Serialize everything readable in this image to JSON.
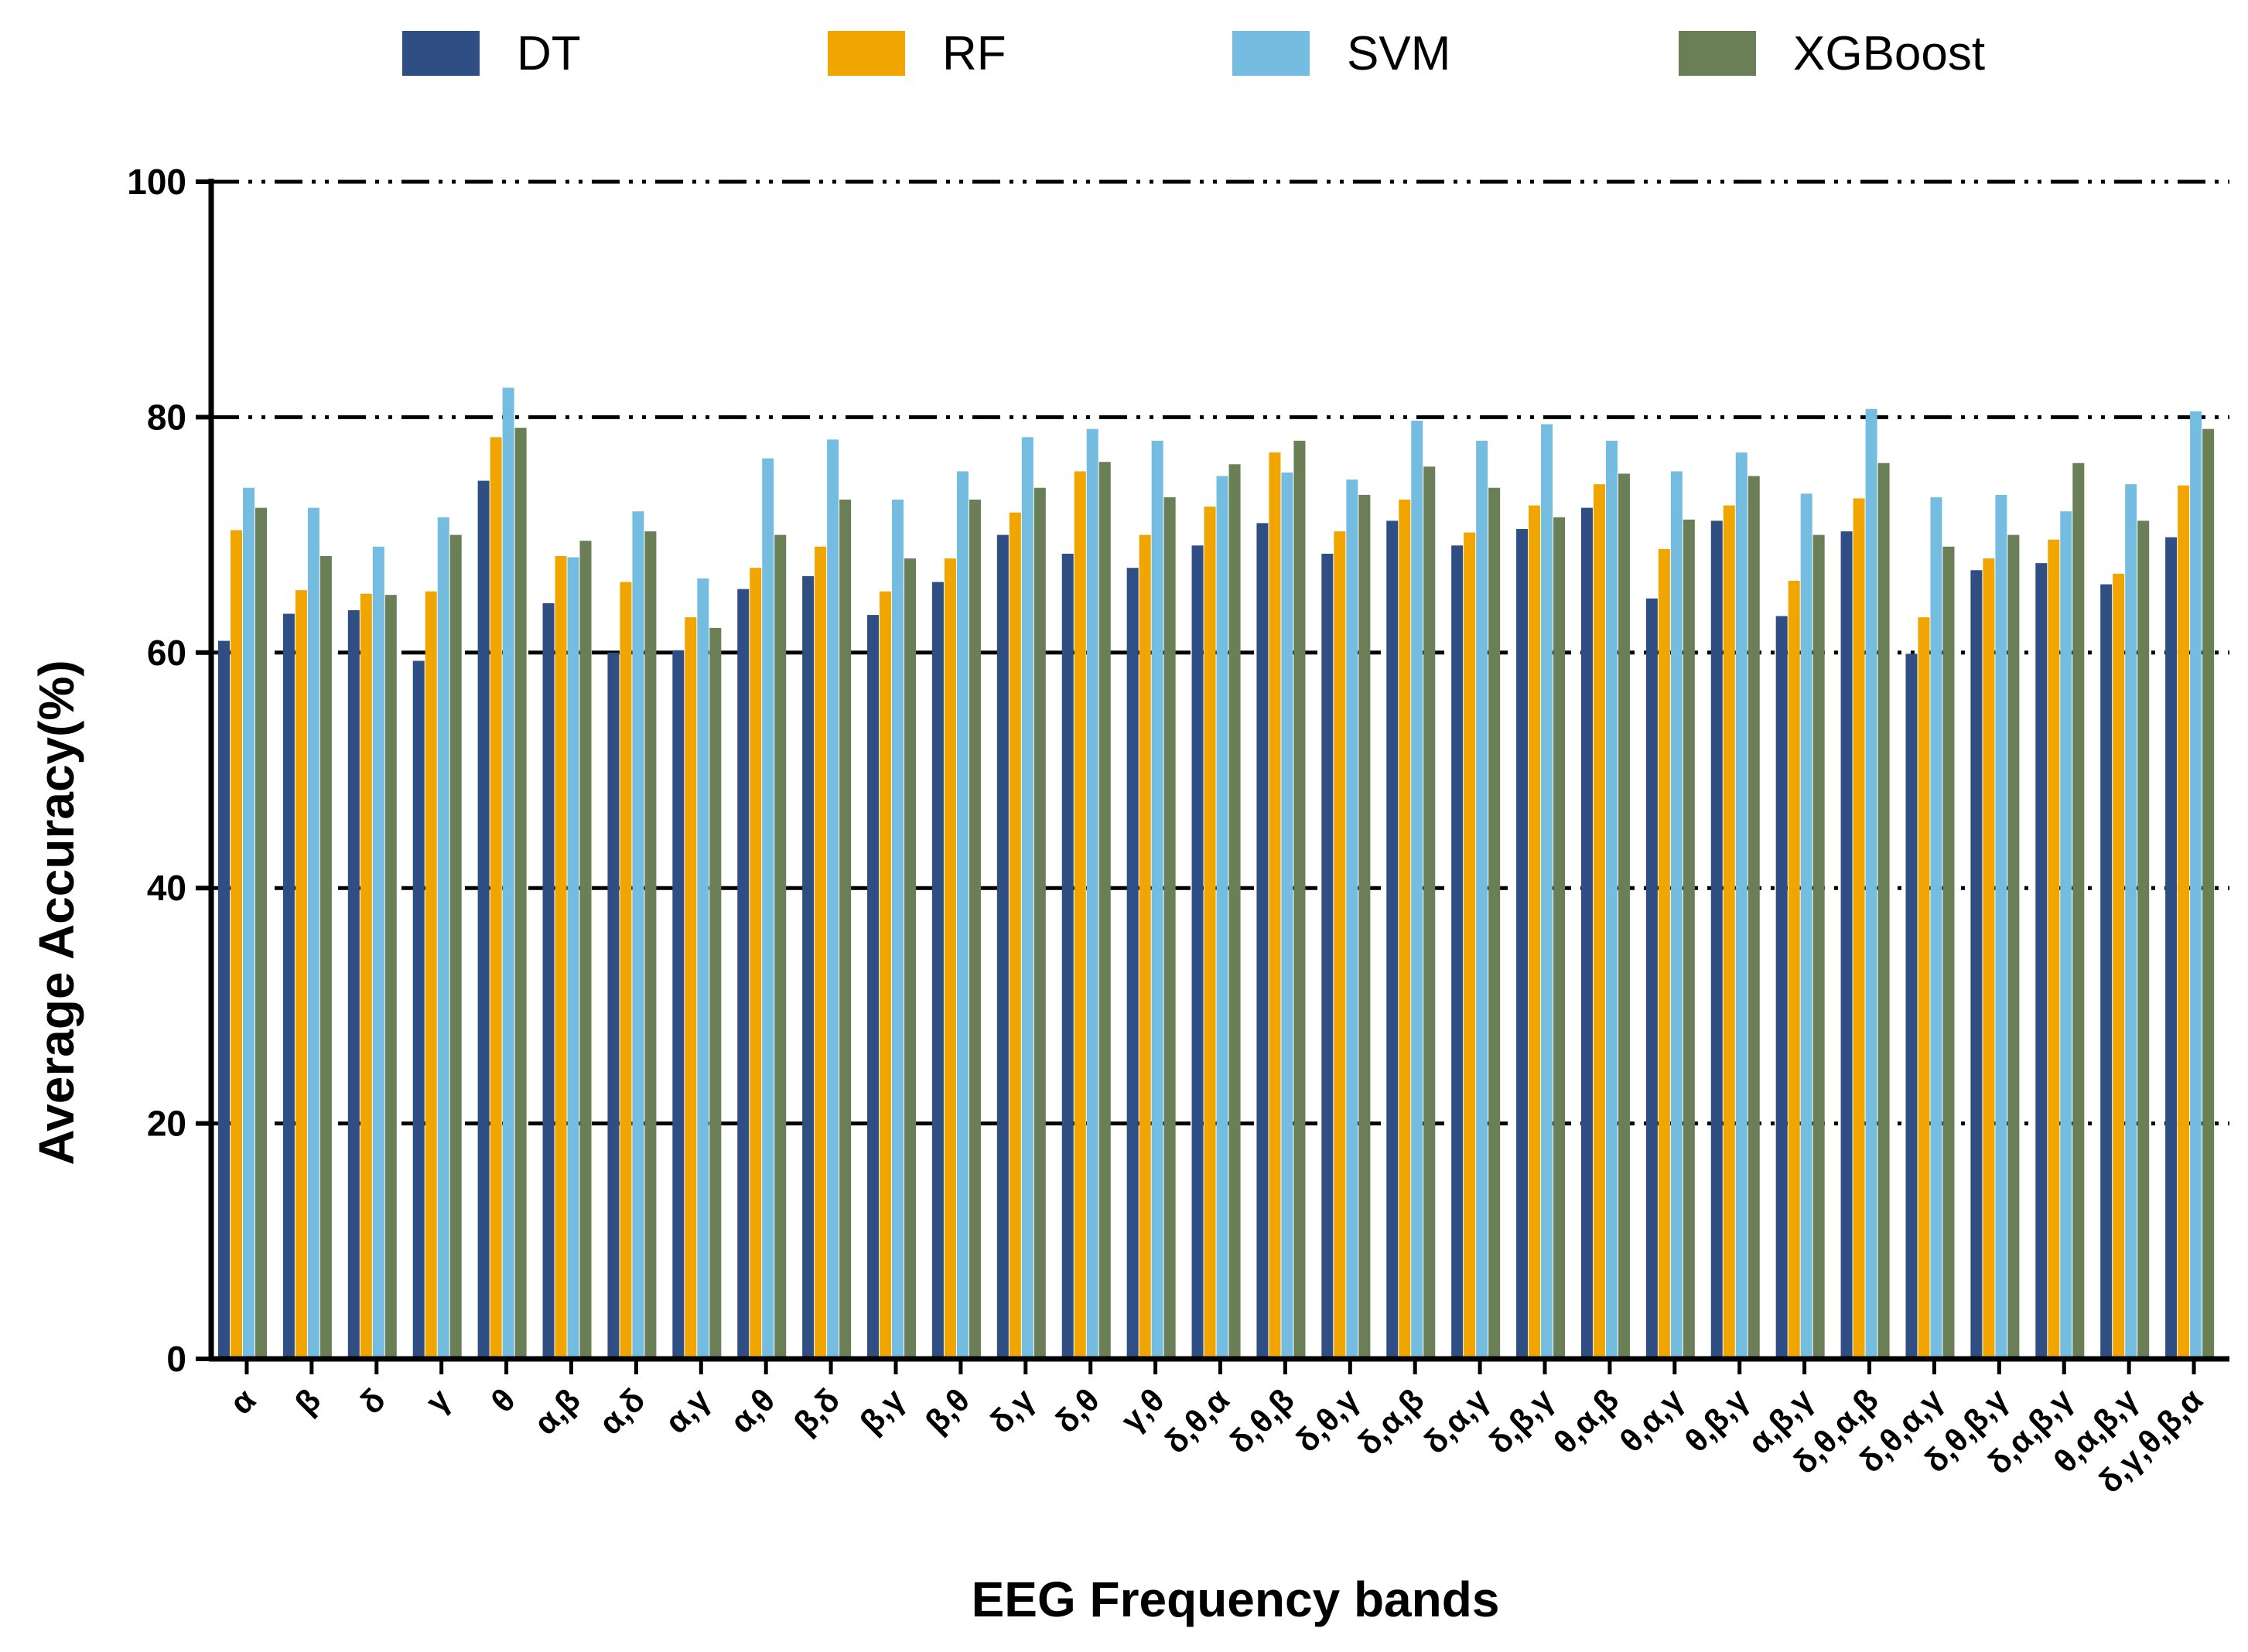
{
  "chart_data": {
    "type": "bar",
    "title": "",
    "xlabel": "EEG Frequency bands",
    "ylabel": "Average Accuracy(%)",
    "ylim": [
      0,
      100
    ],
    "yticks": [
      0,
      20,
      40,
      60,
      80,
      100
    ],
    "legend_position": "top",
    "categories": [
      "α",
      "β",
      "δ",
      "γ",
      "θ",
      "α,β",
      "α,δ",
      "α,γ",
      "α,θ",
      "β,δ",
      "β,γ",
      "β,θ",
      "δ,γ",
      "δ,θ",
      "γ,θ",
      "δ,θ,α",
      "δ,θ,β",
      "δ,θ,γ",
      "δ,α,β",
      "δ,α,γ",
      "δ,β,γ",
      "θ,α,β",
      "θ,α,γ",
      "θ,β,γ",
      "α,β,γ",
      "δ,θ,α,β",
      "δ,θ,α,γ",
      "δ,θ,β,γ",
      "δ,α,β,γ",
      "θ,α,β,γ",
      "δ,γ,θ,β,α"
    ],
    "series": [
      {
        "name": "DT",
        "color": "#2f4f84",
        "values": [
          61,
          63.3,
          63.6,
          59.3,
          74.6,
          64.2,
          60,
          60.2,
          65.4,
          66.5,
          63.2,
          66,
          70,
          68.4,
          67.2,
          69.1,
          71,
          68.4,
          71.2,
          69.1,
          70.5,
          72.3,
          64.6,
          71.2,
          63.1,
          70.3,
          59.9,
          67,
          67.6,
          65.8,
          69.8
        ]
      },
      {
        "name": "RF",
        "color": "#f0a500",
        "values": [
          70.4,
          65.3,
          65,
          65.2,
          78.3,
          68.2,
          66,
          63,
          67.2,
          69,
          65.2,
          68,
          71.9,
          75.4,
          70,
          72.4,
          77,
          70.3,
          73,
          70.2,
          72.5,
          74.3,
          68.8,
          72.5,
          66.1,
          73.1,
          63,
          68,
          69.6,
          66.7,
          74.2
        ]
      },
      {
        "name": "SVM",
        "color": "#74bde0",
        "values": [
          74,
          72.3,
          69,
          71.5,
          82.5,
          68.1,
          72,
          66.3,
          76.5,
          78.1,
          73,
          75.4,
          78.3,
          79,
          78,
          75,
          75.3,
          74.7,
          79.7,
          78,
          79.4,
          78,
          75.4,
          77,
          73.5,
          80.7,
          73.2,
          73.4,
          72,
          74.3,
          80.5
        ]
      },
      {
        "name": "XGBoost",
        "color": "#6b7f57",
        "values": [
          72.3,
          68.2,
          64.9,
          70,
          79.1,
          69.5,
          70.3,
          62.1,
          70,
          73,
          68,
          73,
          74,
          76.2,
          73.2,
          76,
          78,
          73.4,
          75.8,
          74,
          71.5,
          75.2,
          71.3,
          75,
          70,
          76.1,
          69,
          70,
          76.1,
          71.2,
          79
        ]
      }
    ]
  }
}
